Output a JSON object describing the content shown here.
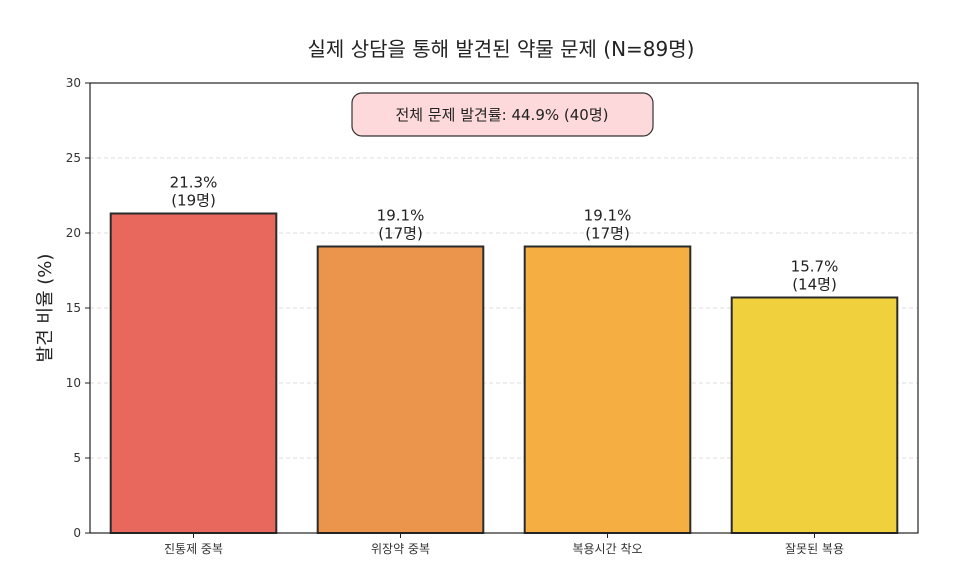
{
  "chart_data": {
    "type": "bar",
    "title": "실제 상담을 통해 발견된 약물 문제 (N=89명)",
    "xlabel": "",
    "ylabel": "발견 비율 (%)",
    "ylim": [
      0,
      30
    ],
    "yticks": [
      0,
      5,
      10,
      15,
      20,
      25,
      30
    ],
    "grid": "horizontal dashed",
    "categories": [
      "진통제 중복",
      "위장약 중복",
      "복용시간 착오",
      "잘못된 복용"
    ],
    "values": [
      21.3,
      19.1,
      19.1,
      15.7
    ],
    "value_labels": [
      "21.3%",
      "19.1%",
      "19.1%",
      "15.7%"
    ],
    "count_labels": [
      "(19명)",
      "(17명)",
      "(17명)",
      "(14명)"
    ],
    "colors": [
      "#e8685d",
      "#eb954c",
      "#f4ae42",
      "#f1d03e"
    ],
    "annotation": "전체 문제 발견률: 44.9% (40명)",
    "annotation_fill": "#fdd9db"
  }
}
